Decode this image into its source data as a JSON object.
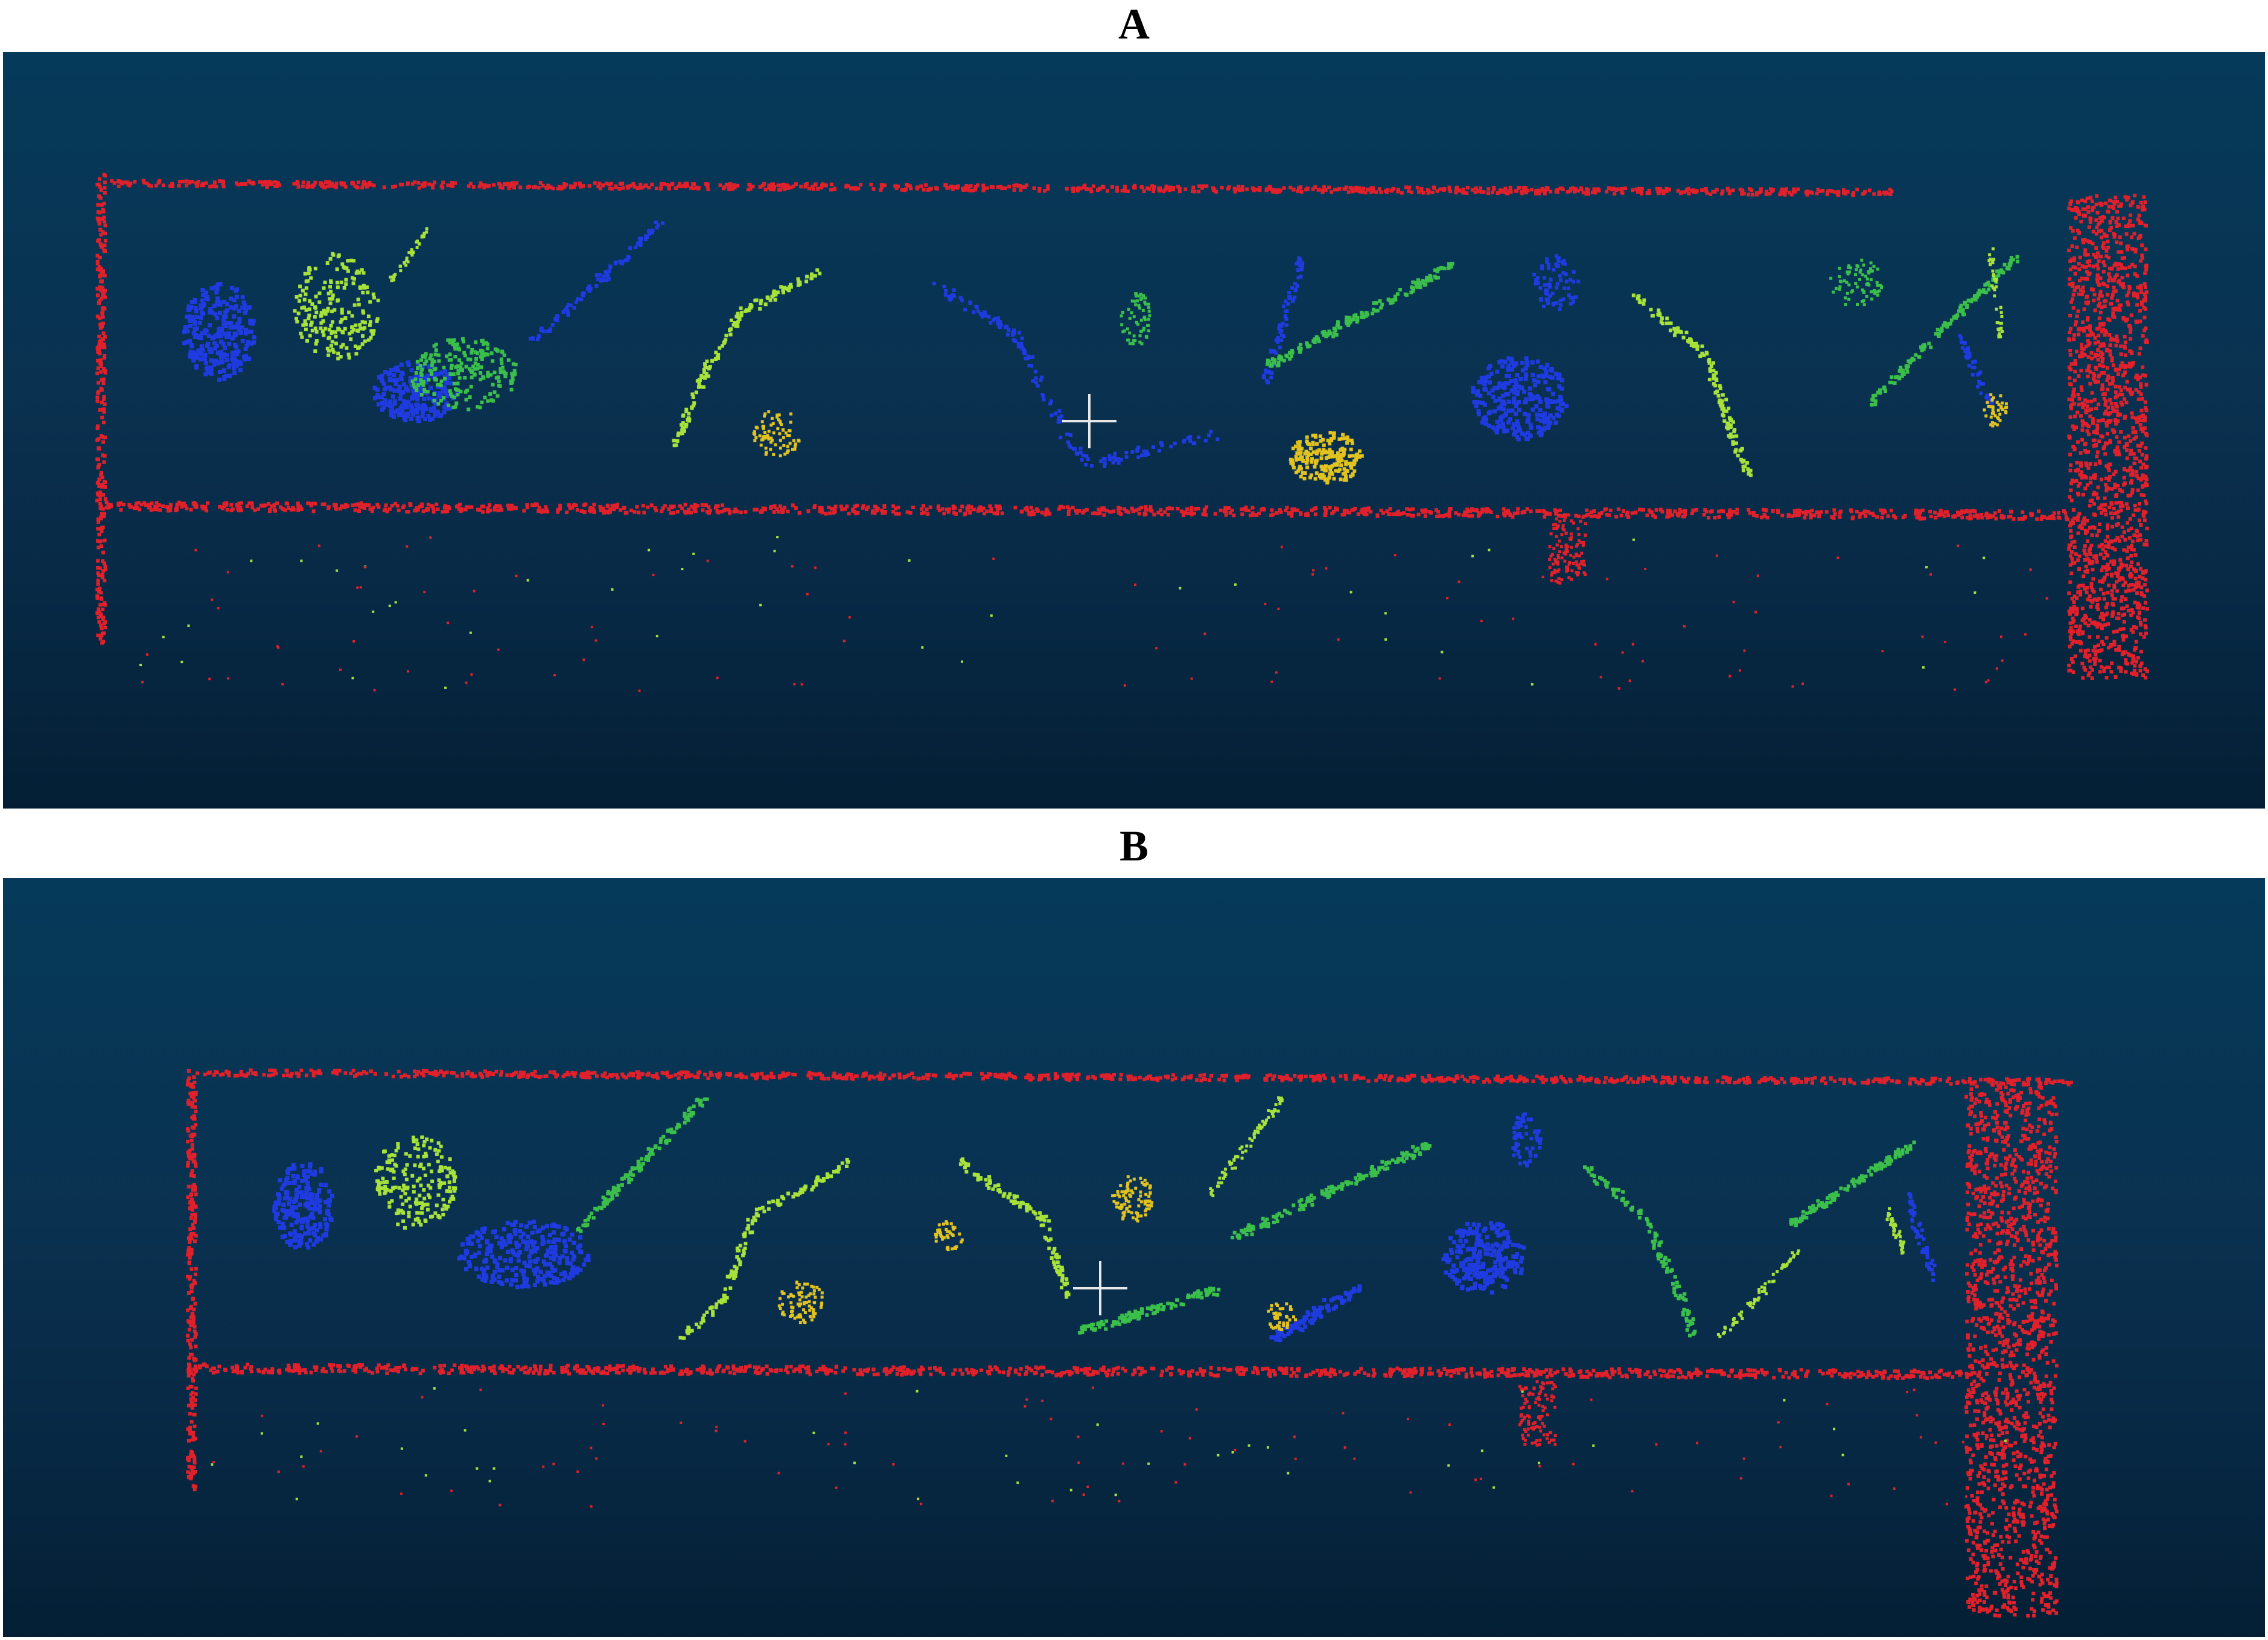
{
  "panels": [
    {
      "label": "A"
    },
    {
      "label": "B"
    }
  ],
  "colors": {
    "background_top": "#053a5a",
    "background_bottom": "#041f35",
    "frame": "#e0202a",
    "blue": "#1f3be0",
    "green": "#3bbf4a",
    "yellow_green": "#a6e23a",
    "yellow": "#e2c21e",
    "crosshair": "#e8e8e8"
  },
  "icons": {
    "center": "crosshair-icon"
  }
}
